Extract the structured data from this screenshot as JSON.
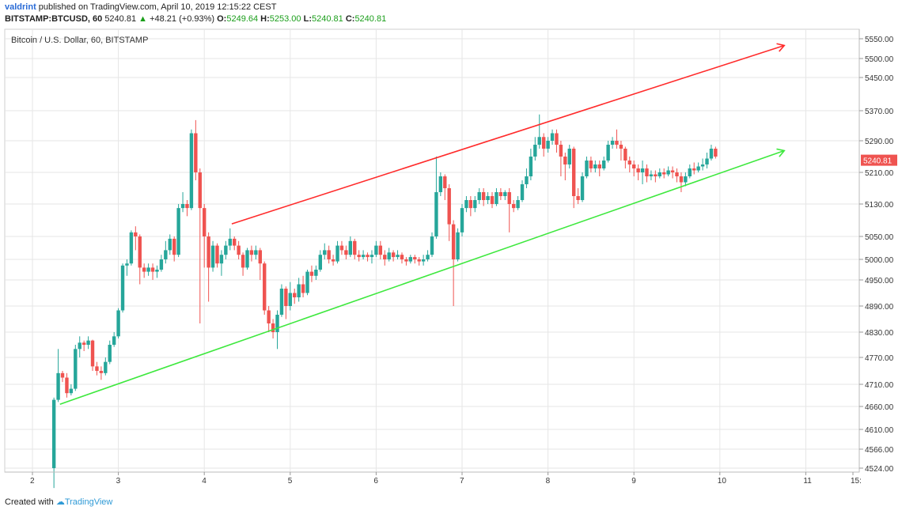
{
  "header": {
    "author": "valdrint",
    "published": "published on TradingView.com, April 10, 2019 12:15:22 CEST",
    "symbol": "BITSTAMP:BTCUSD, 60",
    "last": "5240.81",
    "change": "+48.21 (+0.93%)",
    "o_label": "O:",
    "o_value": "5249.64",
    "h_label": "H:",
    "h_value": "5253.00",
    "l_label": "L:",
    "l_value": "5240.81",
    "c_label": "C:",
    "c_value": "5240.81"
  },
  "footer": {
    "created_with": "Created with",
    "brand": "TradingView"
  },
  "colors": {
    "up": "#26a69a",
    "down": "#ef5350",
    "resistance": "#ff2b2b",
    "support": "#3ee83e",
    "grid": "#e6e6e6"
  },
  "chart_data": {
    "type": "candlestick",
    "title": "Bitcoin / U.S. Dollar, 60, BITSTAMP",
    "x_ticks": [
      "2",
      "3",
      "4",
      "5",
      "6",
      "7",
      "8",
      "9",
      "10",
      "11",
      "15:"
    ],
    "y_ticks": [
      "5550.00",
      "5500.00",
      "5450.00",
      "5370.00",
      "5290.00",
      "5210.00",
      "5130.00",
      "5050.00",
      "5000.00",
      "4950.00",
      "4890.00",
      "4830.00",
      "4770.00",
      "4710.00",
      "4660.00",
      "4610.00",
      "4566.00",
      "4524.00"
    ],
    "price_label": "5240.81",
    "trendlines": [
      {
        "name": "resistance",
        "from": {
          "day": 4.32,
          "price": 5081
        },
        "to": {
          "day": 10.75,
          "price": 5533
        }
      },
      {
        "name": "support",
        "from": {
          "day": 2.32,
          "price": 4665
        },
        "to": {
          "day": 10.75,
          "price": 5265
        }
      }
    ],
    "candles": [
      [
        2.25,
        4524,
        4675,
        4480,
        4680
      ],
      [
        2.3,
        4675,
        4735,
        4670,
        4790
      ],
      [
        2.35,
        4735,
        4725,
        4715,
        4740
      ],
      [
        2.4,
        4725,
        4690,
        4680,
        4735
      ],
      [
        2.45,
        4690,
        4700,
        4685,
        4710
      ],
      [
        2.5,
        4700,
        4790,
        4695,
        4800
      ],
      [
        2.55,
        4790,
        4805,
        4770,
        4820
      ],
      [
        2.6,
        4805,
        4800,
        4785,
        4810
      ],
      [
        2.65,
        4800,
        4810,
        4790,
        4820
      ],
      [
        2.7,
        4810,
        4750,
        4740,
        4812
      ],
      [
        2.75,
        4750,
        4740,
        4730,
        4760
      ],
      [
        2.8,
        4740,
        4735,
        4720,
        4750
      ],
      [
        2.85,
        4735,
        4760,
        4730,
        4770
      ],
      [
        2.9,
        4760,
        4800,
        4755,
        4810
      ],
      [
        2.95,
        4800,
        4820,
        4795,
        4830
      ],
      [
        3.0,
        4820,
        4880,
        4815,
        4885
      ],
      [
        3.05,
        4880,
        4985,
        4875,
        4990
      ],
      [
        3.1,
        4985,
        4990,
        4960,
        5000
      ],
      [
        3.15,
        4990,
        5060,
        4985,
        5065
      ],
      [
        3.2,
        5060,
        5050,
        5020,
        5075
      ],
      [
        3.25,
        5050,
        4980,
        4940,
        5055
      ],
      [
        3.3,
        4980,
        4970,
        4955,
        4990
      ],
      [
        3.35,
        4970,
        4980,
        4960,
        4990
      ],
      [
        3.4,
        4980,
        4970,
        4950,
        4990
      ],
      [
        3.45,
        4970,
        4975,
        4955,
        4985
      ],
      [
        3.5,
        4975,
        5000,
        4970,
        5010
      ],
      [
        3.55,
        5000,
        5020,
        4990,
        5040
      ],
      [
        3.6,
        5020,
        5045,
        5010,
        5055
      ],
      [
        3.65,
        5045,
        5010,
        4995,
        5050
      ],
      [
        3.7,
        5010,
        5120,
        5005,
        5130
      ],
      [
        3.75,
        5120,
        5130,
        5110,
        5160
      ],
      [
        3.8,
        5130,
        5120,
        5100,
        5140
      ],
      [
        3.85,
        5120,
        5310,
        5115,
        5320
      ],
      [
        3.9,
        5310,
        5210,
        5190,
        5345
      ],
      [
        3.95,
        5210,
        5120,
        4850,
        5220
      ],
      [
        4.0,
        5120,
        5050,
        4980,
        5130
      ],
      [
        4.05,
        5050,
        4980,
        4900,
        5060
      ],
      [
        4.1,
        4980,
        5030,
        4970,
        5040
      ],
      [
        4.15,
        5030,
        4990,
        4980,
        5035
      ],
      [
        4.2,
        4990,
        5010,
        4960,
        5020
      ],
      [
        4.25,
        5010,
        5030,
        5000,
        5040
      ],
      [
        4.3,
        5030,
        5045,
        5020,
        5070
      ],
      [
        4.35,
        5045,
        5030,
        5020,
        5050
      ],
      [
        4.4,
        5030,
        5010,
        5000,
        5040
      ],
      [
        4.45,
        5010,
        4980,
        4960,
        5015
      ],
      [
        4.5,
        4980,
        5020,
        4975,
        5025
      ],
      [
        4.55,
        5020,
        5010,
        4995,
        5030
      ],
      [
        4.6,
        5010,
        5020,
        5000,
        5030
      ],
      [
        4.65,
        5020,
        4990,
        4950,
        5025
      ],
      [
        4.7,
        4990,
        4880,
        4870,
        4995
      ],
      [
        4.75,
        4880,
        4850,
        4830,
        4890
      ],
      [
        4.8,
        4850,
        4830,
        4815,
        4860
      ],
      [
        4.85,
        4830,
        4870,
        4790,
        4880
      ],
      [
        4.9,
        4870,
        4930,
        4865,
        4940
      ],
      [
        4.95,
        4930,
        4890,
        4860,
        4935
      ],
      [
        5.0,
        4890,
        4920,
        4880,
        4945
      ],
      [
        5.05,
        4920,
        4910,
        4895,
        4930
      ],
      [
        5.1,
        4910,
        4940,
        4900,
        4955
      ],
      [
        5.15,
        4940,
        4920,
        4910,
        4960
      ],
      [
        5.2,
        4920,
        4970,
        4915,
        4975
      ],
      [
        5.25,
        4970,
        4960,
        4945,
        4985
      ],
      [
        5.3,
        4960,
        4975,
        4950,
        4985
      ],
      [
        5.35,
        4975,
        5010,
        4970,
        5020
      ],
      [
        5.4,
        5010,
        5020,
        5000,
        5035
      ],
      [
        5.45,
        5020,
        5000,
        4990,
        5030
      ],
      [
        5.5,
        5000,
        4995,
        4985,
        5010
      ],
      [
        5.55,
        4995,
        5030,
        4990,
        5040
      ],
      [
        5.6,
        5030,
        5020,
        5010,
        5040
      ],
      [
        5.65,
        5020,
        5010,
        5000,
        5030
      ],
      [
        5.7,
        5010,
        5040,
        5005,
        5050
      ],
      [
        5.75,
        5040,
        5010,
        5000,
        5045
      ],
      [
        5.8,
        5010,
        5005,
        4995,
        5020
      ],
      [
        5.85,
        5005,
        5010,
        5000,
        5020
      ],
      [
        5.9,
        5010,
        5005,
        4995,
        5015
      ],
      [
        5.95,
        5005,
        5010,
        4990,
        5020
      ],
      [
        6.0,
        5010,
        5030,
        5005,
        5040
      ],
      [
        6.05,
        5030,
        5010,
        5000,
        5040
      ],
      [
        6.1,
        5010,
        5000,
        4985,
        5020
      ],
      [
        6.15,
        5000,
        5015,
        4995,
        5025
      ],
      [
        6.2,
        5015,
        5005,
        4995,
        5020
      ],
      [
        6.25,
        5005,
        5010,
        5000,
        5020
      ],
      [
        6.3,
        5010,
        5000,
        4990,
        5015
      ],
      [
        6.35,
        5000,
        4995,
        4985,
        5005
      ],
      [
        6.4,
        4995,
        5005,
        4990,
        5010
      ],
      [
        6.45,
        5005,
        5000,
        4990,
        5010
      ],
      [
        6.5,
        5000,
        4995,
        4985,
        5005
      ],
      [
        6.55,
        4995,
        5000,
        4985,
        5010
      ],
      [
        6.6,
        5000,
        5010,
        4995,
        5020
      ],
      [
        6.65,
        5010,
        5050,
        5005,
        5060
      ],
      [
        6.7,
        5050,
        5160,
        5045,
        5250
      ],
      [
        6.75,
        5160,
        5200,
        5150,
        5210
      ],
      [
        6.8,
        5200,
        5170,
        5140,
        5205
      ],
      [
        6.85,
        5170,
        5080,
        5040,
        5180
      ],
      [
        6.9,
        5080,
        5000,
        4890,
        5090
      ],
      [
        6.95,
        5000,
        5060,
        4995,
        5070
      ],
      [
        7.0,
        5060,
        5120,
        5050,
        5130
      ],
      [
        7.05,
        5120,
        5140,
        5110,
        5150
      ],
      [
        7.1,
        5140,
        5120,
        5100,
        5150
      ],
      [
        7.15,
        5120,
        5140,
        5110,
        5150
      ],
      [
        7.2,
        5140,
        5160,
        5130,
        5170
      ],
      [
        7.25,
        5160,
        5140,
        5125,
        5170
      ],
      [
        7.3,
        5140,
        5150,
        5130,
        5160
      ],
      [
        7.35,
        5150,
        5130,
        5120,
        5160
      ],
      [
        7.4,
        5130,
        5160,
        5125,
        5170
      ],
      [
        7.45,
        5160,
        5150,
        5140,
        5170
      ],
      [
        7.5,
        5150,
        5160,
        5140,
        5165
      ],
      [
        7.55,
        5160,
        5130,
        5060,
        5170
      ],
      [
        7.6,
        5130,
        5120,
        5110,
        5140
      ],
      [
        7.65,
        5120,
        5140,
        5115,
        5150
      ],
      [
        7.7,
        5140,
        5180,
        5135,
        5190
      ],
      [
        7.75,
        5180,
        5200,
        5170,
        5220
      ],
      [
        7.8,
        5200,
        5250,
        5190,
        5270
      ],
      [
        7.85,
        5250,
        5280,
        5240,
        5300
      ],
      [
        7.9,
        5280,
        5300,
        5270,
        5360
      ],
      [
        7.95,
        5300,
        5270,
        5250,
        5310
      ],
      [
        8.0,
        5270,
        5290,
        5260,
        5300
      ],
      [
        8.05,
        5290,
        5310,
        5280,
        5320
      ],
      [
        8.1,
        5310,
        5280,
        5260,
        5320
      ],
      [
        8.15,
        5280,
        5250,
        5200,
        5290
      ],
      [
        8.2,
        5250,
        5230,
        5190,
        5260
      ],
      [
        8.25,
        5230,
        5270,
        5220,
        5280
      ],
      [
        8.3,
        5270,
        5150,
        5120,
        5275
      ],
      [
        8.35,
        5150,
        5140,
        5130,
        5170
      ],
      [
        8.4,
        5140,
        5200,
        5135,
        5210
      ],
      [
        8.45,
        5200,
        5240,
        5195,
        5250
      ],
      [
        8.5,
        5240,
        5220,
        5210,
        5250
      ],
      [
        8.55,
        5220,
        5230,
        5210,
        5240
      ],
      [
        8.6,
        5230,
        5220,
        5200,
        5240
      ],
      [
        8.65,
        5220,
        5240,
        5215,
        5250
      ],
      [
        8.7,
        5240,
        5280,
        5235,
        5290
      ],
      [
        8.75,
        5280,
        5290,
        5270,
        5300
      ],
      [
        8.8,
        5290,
        5280,
        5270,
        5320
      ],
      [
        8.85,
        5280,
        5270,
        5240,
        5290
      ],
      [
        8.9,
        5270,
        5240,
        5220,
        5275
      ],
      [
        8.95,
        5240,
        5230,
        5210,
        5250
      ],
      [
        9.0,
        5230,
        5220,
        5200,
        5240
      ],
      [
        9.05,
        5220,
        5210,
        5190,
        5230
      ],
      [
        9.1,
        5210,
        5220,
        5180,
        5240
      ],
      [
        9.15,
        5220,
        5200,
        5185,
        5230
      ],
      [
        9.2,
        5200,
        5205,
        5190,
        5215
      ],
      [
        9.25,
        5205,
        5200,
        5185,
        5215
      ],
      [
        9.3,
        5200,
        5210,
        5195,
        5220
      ],
      [
        9.35,
        5210,
        5205,
        5195,
        5220
      ],
      [
        9.4,
        5205,
        5215,
        5200,
        5225
      ],
      [
        9.45,
        5215,
        5210,
        5195,
        5225
      ],
      [
        9.5,
        5210,
        5200,
        5185,
        5220
      ],
      [
        9.55,
        5200,
        5185,
        5160,
        5210
      ],
      [
        9.6,
        5185,
        5200,
        5175,
        5210
      ],
      [
        9.65,
        5200,
        5220,
        5195,
        5230
      ],
      [
        9.7,
        5220,
        5215,
        5205,
        5235
      ],
      [
        9.75,
        5215,
        5225,
        5210,
        5235
      ],
      [
        9.8,
        5225,
        5230,
        5215,
        5245
      ],
      [
        9.85,
        5230,
        5245,
        5220,
        5260
      ],
      [
        9.9,
        5245,
        5270,
        5240,
        5280
      ],
      [
        9.95,
        5270,
        5250,
        5245,
        5275
      ]
    ]
  }
}
